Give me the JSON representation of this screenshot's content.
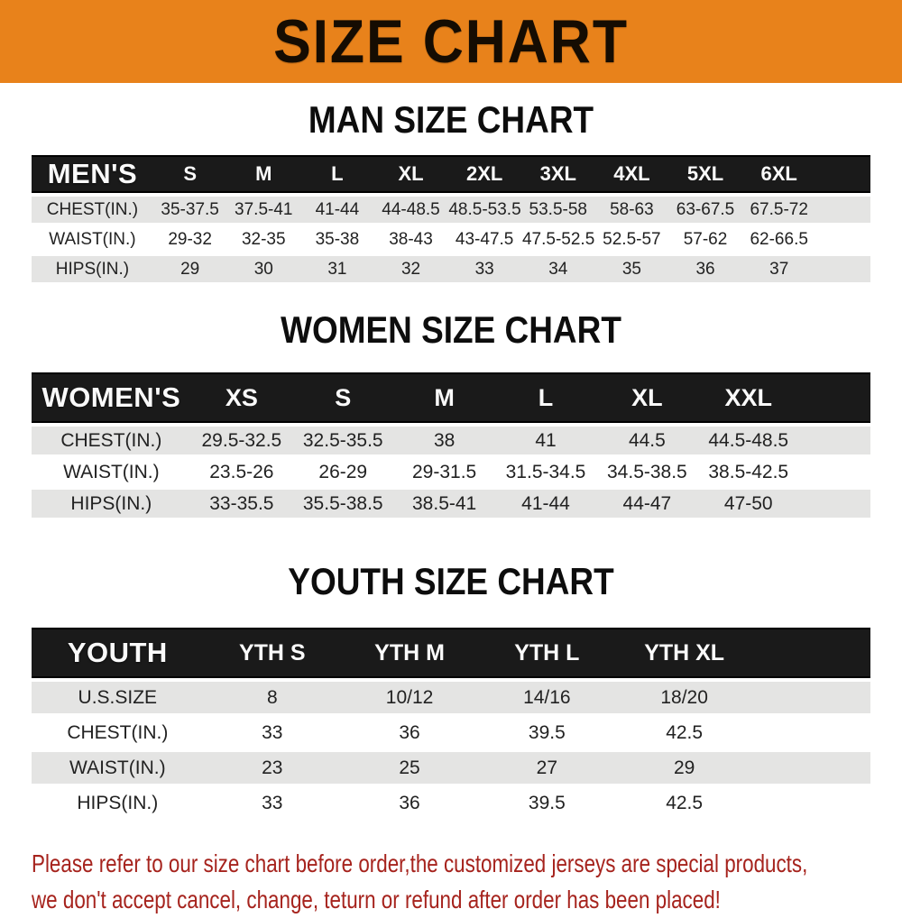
{
  "banner": {
    "title": "SIZE CHART",
    "bg_color": "#e8821b",
    "text_color": "#150c02"
  },
  "sections": [
    {
      "kind": "men",
      "heading": "MAN SIZE CHART",
      "table": {
        "label": "MEN'S",
        "columns": [
          "S",
          "M",
          "L",
          "XL",
          "2XL",
          "3XL",
          "4XL",
          "5XL",
          "6XL"
        ],
        "rows": [
          {
            "label": "CHEST(IN.)",
            "values": [
              "35-37.5",
              "37.5-41",
              "41-44",
              "44-48.5",
              "48.5-53.5",
              "53.5-58",
              "58-63",
              "63-67.5",
              "67.5-72"
            ]
          },
          {
            "label": "WAIST(IN.)",
            "values": [
              "29-32",
              "32-35",
              "35-38",
              "38-43",
              "43-47.5",
              "47.5-52.5",
              "52.5-57",
              "57-62",
              "62-66.5"
            ]
          },
          {
            "label": "HIPS(IN.)",
            "values": [
              "29",
              "30",
              "31",
              "32",
              "33",
              "34",
              "35",
              "36",
              "37"
            ]
          }
        ]
      }
    },
    {
      "kind": "women",
      "heading": "WOMEN SIZE CHART",
      "table": {
        "label": "WOMEN'S",
        "columns": [
          "XS",
          "S",
          "M",
          "L",
          "XL",
          "XXL"
        ],
        "rows": [
          {
            "label": "CHEST(IN.)",
            "values": [
              "29.5-32.5",
              "32.5-35.5",
              "38",
              "41",
              "44.5",
              "44.5-48.5"
            ]
          },
          {
            "label": "WAIST(IN.)",
            "values": [
              "23.5-26",
              "26-29",
              "29-31.5",
              "31.5-34.5",
              "34.5-38.5",
              "38.5-42.5"
            ]
          },
          {
            "label": "HIPS(IN.)",
            "values": [
              "33-35.5",
              "35.5-38.5",
              "38.5-41",
              "41-44",
              "44-47",
              "47-50"
            ]
          }
        ]
      }
    },
    {
      "kind": "youth",
      "heading": "YOUTH SIZE CHART",
      "table": {
        "label": "YOUTH",
        "columns": [
          "YTH S",
          "YTH M",
          "YTH L",
          "YTH XL"
        ],
        "rows": [
          {
            "label": "U.S.SIZE",
            "values": [
              "8",
              "10/12",
              "14/16",
              "18/20"
            ]
          },
          {
            "label": "CHEST(IN.)",
            "values": [
              "33",
              "36",
              "39.5",
              "42.5"
            ]
          },
          {
            "label": "WAIST(IN.)",
            "values": [
              "23",
              "25",
              "27",
              "29"
            ]
          },
          {
            "label": "HIPS(IN.)",
            "values": [
              "33",
              "36",
              "39.5",
              "42.5"
            ]
          }
        ]
      }
    }
  ],
  "footer": {
    "color": "#a6231d",
    "lines": [
      "Please refer to our size chart before order,the customized jerseys are special products,",
      "we don't accept cancel, change, teturn or refund after order has been placed!"
    ]
  }
}
